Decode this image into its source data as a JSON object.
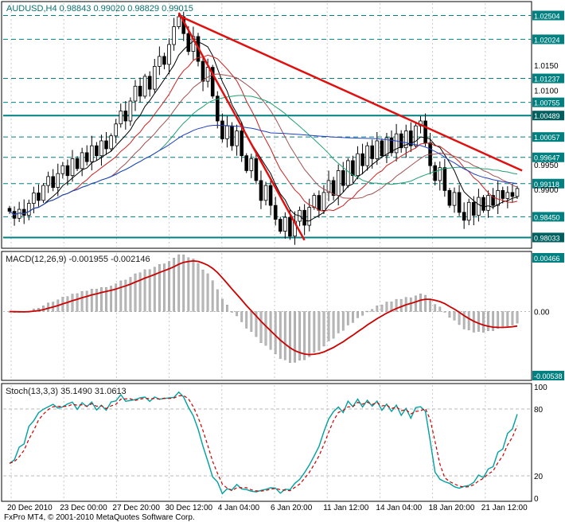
{
  "header": {
    "title": "AUDUSD,H4 0.98843 0.99020 0.98829 0.99015",
    "symbol": "AUDUSD",
    "period": "H4",
    "open": "0.98843",
    "high": "0.99020",
    "low": "0.98829",
    "close": "0.99015"
  },
  "macd": {
    "label": "MACD(12,26,9) -0.001955 -0.002146"
  },
  "stoch": {
    "label": "Stoch(13,3,3) 35.1490 31.0613"
  },
  "footer": {
    "copyright": "FxPro MT4, © 2001-2010 MetaQuotes Software Corp."
  },
  "colors": {
    "accent": "#008080",
    "accent_dark": "#006060",
    "grid": "#c8c8c8",
    "trend": "#e01010",
    "bull": "#ffffff",
    "bear": "#000000",
    "macd_hist": "#b8b8b8",
    "macd_signal": "#cc0000",
    "stoch_main": "#00a0a0",
    "stoch_signal": "#cc0000"
  },
  "chart_data": [
    {
      "type": "candlestick",
      "title": "AUDUSD,H4",
      "ylim": [
        0.9788,
        1.0272
      ],
      "x_ticks": [
        "20 Dec 2010",
        "23 Dec 00:00",
        "27 Dec 20:00",
        "30 Dec 12:00",
        "4 Jan 04:00",
        "6 Jan 20:00",
        "11 Jan 12:00",
        "14 Jan 04:00",
        "18 Jan 20:00",
        "21 Jan 12:00"
      ],
      "closes": [
        0.9856,
        0.9842,
        0.986,
        0.9848,
        0.9872,
        0.9893,
        0.9878,
        0.9908,
        0.9926,
        0.9904,
        0.9932,
        0.9948,
        0.9928,
        0.9962,
        0.9942,
        0.9974,
        0.9956,
        0.9988,
        0.9968,
        0.9998,
        0.9982,
        1.0008,
        1.0032,
        1.0058,
        1.0038,
        1.0078,
        1.0108,
        1.0088,
        1.0128,
        1.0102,
        1.0148,
        1.0168,
        1.0152,
        1.0192,
        1.0228,
        1.0248,
        1.0214,
        1.0178,
        1.0208,
        1.0158,
        1.0118,
        1.0146,
        1.0088,
        1.0038,
        1.0002,
        1.0028,
        0.9988,
        1.0018,
        0.9968,
        0.9938,
        0.9962,
        0.9918,
        0.9878,
        0.9908,
        0.9868,
        0.984,
        0.9816,
        0.9844,
        0.9806,
        0.9836,
        0.9858,
        0.9828,
        0.9864,
        0.9888,
        0.9858,
        0.9894,
        0.9918,
        0.9888,
        0.9938,
        0.9908,
        0.9958,
        0.9928,
        0.9972,
        0.9948,
        0.9988,
        0.9962,
        0.9998,
        0.9968,
        1.0004,
        0.9974,
        1.0012,
        0.9984,
        1.0018,
        0.9988,
        1.0028,
        1.0038,
        0.9994,
        0.9948,
        0.9918,
        0.9944,
        0.9898,
        0.9868,
        0.9894,
        0.9854,
        0.9838,
        0.9874,
        0.9848,
        0.9884,
        0.9858,
        0.9888,
        0.9868,
        0.9898,
        0.9882,
        0.9894,
        0.9886,
        0.9902
      ],
      "levels": [
        {
          "label": "1.02504",
          "value": 1.02504,
          "line": "dashed"
        },
        {
          "label": "1.02024",
          "value": 1.02024,
          "line": "dashed"
        },
        {
          "label": "1.01237",
          "value": 1.01237,
          "line": "dashed"
        },
        {
          "label": "1.00755",
          "value": 1.00755,
          "line": "dashed"
        },
        {
          "label": "1.00489",
          "value": 1.00489,
          "line": "solid"
        },
        {
          "label": "1.00057",
          "value": 1.00057,
          "line": "dashed"
        },
        {
          "label": "0.99647",
          "value": 0.99647,
          "line": "dashed"
        },
        {
          "label": "0.99118",
          "value": 0.99118,
          "line": "dashed"
        },
        {
          "label": "0.98450",
          "value": 0.9845,
          "line": "dashed"
        },
        {
          "label": "0.98033",
          "value": 0.98033,
          "line": "solid"
        }
      ],
      "scale_labels": [
        {
          "label": "1.0150",
          "value": 1.015
        },
        {
          "label": "1.0100",
          "value": 1.01
        },
        {
          "label": "0.9950",
          "value": 0.995
        },
        {
          "label": "0.9900",
          "value": 0.99
        }
      ],
      "moving_averages": [
        {
          "period": 8,
          "color": "#000000"
        },
        {
          "period": 14,
          "color": "#cc2020"
        },
        {
          "period": 22,
          "color": "#a05050"
        },
        {
          "period": 32,
          "color": "#20a070"
        },
        {
          "period": 55,
          "color": "#2040c0"
        }
      ],
      "trendlines": [
        {
          "i1": 35,
          "p1": 1.0256,
          "i2": 61,
          "p2": 0.9798
        },
        {
          "i1": 35,
          "p1": 1.025,
          "i2": 106,
          "p2": 0.9938
        }
      ]
    },
    {
      "type": "macd",
      "fast": 12,
      "slow": 26,
      "signal": 9,
      "value_main": -0.001955,
      "value_signal": -0.002146,
      "ylim": [
        -0.00538,
        0.00466
      ],
      "scale_labels": [
        {
          "label": "0.00466",
          "value": 0.00466,
          "boxed": true
        },
        {
          "label": "0.00",
          "value": 0,
          "boxed": false
        },
        {
          "label": "-0.00538",
          "value": -0.00538,
          "boxed": true
        }
      ]
    },
    {
      "type": "stochastic",
      "k": 13,
      "d": 3,
      "slowing": 3,
      "value_main": 35.149,
      "value_signal": 31.0613,
      "ylim": [
        0,
        100
      ],
      "levels": [
        80,
        20
      ],
      "scale_labels": [
        {
          "label": "100",
          "value": 100
        },
        {
          "label": "80",
          "value": 80
        },
        {
          "label": "20",
          "value": 20
        },
        {
          "label": "0",
          "value": 0
        }
      ]
    }
  ]
}
